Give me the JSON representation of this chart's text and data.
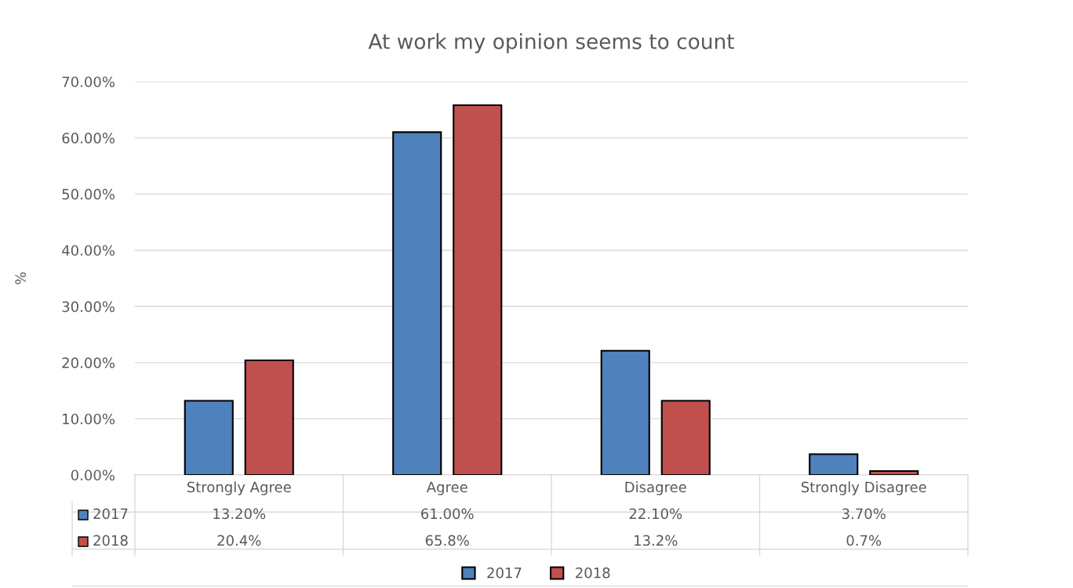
{
  "chart_data": {
    "type": "bar",
    "title": "At work my opinion seems to count",
    "ylabel": "%",
    "categories": [
      "Strongly Agree",
      "Agree",
      "Disagree",
      "Strongly Disagree"
    ],
    "series": [
      {
        "name": "2017",
        "color": "#4f81bd",
        "values": [
          13.2,
          61.0,
          22.1,
          3.7
        ],
        "value_labels": [
          "13.20%",
          "61.00%",
          "22.10%",
          "3.70%"
        ]
      },
      {
        "name": "2018",
        "color": "#c0504d",
        "values": [
          20.4,
          65.8,
          13.2,
          0.7
        ],
        "value_labels": [
          "20.4%",
          "65.8%",
          "13.2%",
          "0.7%"
        ]
      }
    ],
    "ylim": [
      0,
      70
    ],
    "yticks": [
      {
        "value": 0,
        "label": "0.00%"
      },
      {
        "value": 10,
        "label": "10.00%"
      },
      {
        "value": 20,
        "label": "20.00%"
      },
      {
        "value": 30,
        "label": "30.00%"
      },
      {
        "value": 40,
        "label": "40.00%"
      },
      {
        "value": 50,
        "label": "50.00%"
      },
      {
        "value": 60,
        "label": "60.00%"
      },
      {
        "value": 70,
        "label": "70.00%"
      }
    ],
    "grid": "y",
    "legend": "bottom"
  }
}
